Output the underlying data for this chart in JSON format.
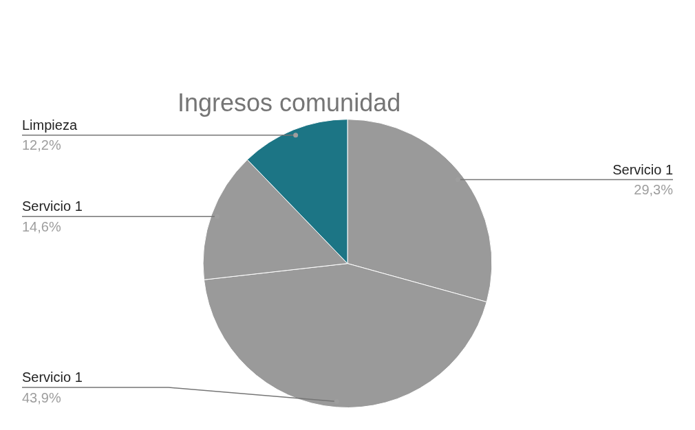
{
  "chart_data": {
    "type": "pie",
    "title": "Ingresos comunidad",
    "categories": [
      "Servicio 1",
      "Servicio 1",
      "Servicio 1",
      "Limpieza"
    ],
    "values": [
      29.3,
      43.9,
      14.6,
      12.2
    ],
    "value_labels": [
      "29,3%",
      "43,9%",
      "14,6%",
      "12,2%"
    ],
    "colors": [
      "#9a9a9a",
      "#9a9a9a",
      "#9a9a9a",
      "#1c7585"
    ],
    "legend": false
  }
}
